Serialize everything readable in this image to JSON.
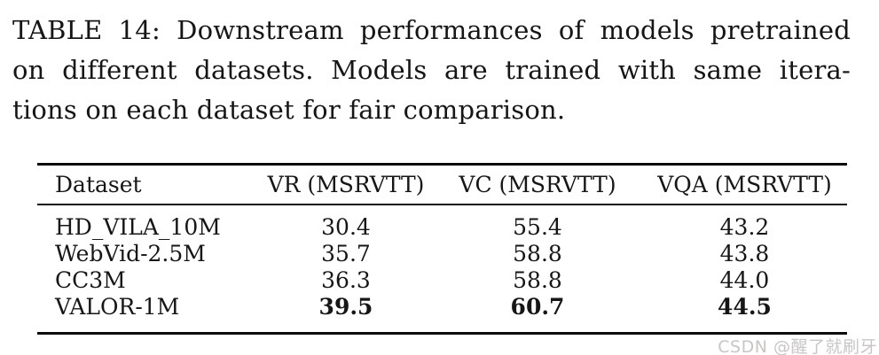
{
  "caption": {
    "lines": [
      "TABLE 14: Downstream performances of models pretrained",
      "on different datasets. Models are trained with same itera-",
      "tions on each dataset for fair comparison."
    ]
  },
  "table": {
    "columns": [
      "Dataset",
      "VR (MSRVTT)",
      "VC (MSRVTT)",
      "VQA (MSRVTT)"
    ],
    "rows": [
      {
        "dataset": "HD_VILA_10M",
        "vr": "30.4",
        "vc": "55.4",
        "vqa": "43.2"
      },
      {
        "dataset": "WebVid-2.5M",
        "vr": "35.7",
        "vc": "58.8",
        "vqa": "43.8"
      },
      {
        "dataset": "CC3M",
        "vr": "36.3",
        "vc": "58.8",
        "vqa": "44.0"
      },
      {
        "dataset": "VALOR-1M",
        "vr": "39.5",
        "vc": "60.7",
        "vqa": "44.5"
      }
    ],
    "best_row": "VALOR-1M"
  },
  "watermark": {
    "text": "CSDN @醒了就刷牙"
  },
  "colors": {
    "background": "#ffffff",
    "text": "#161616",
    "rule": "#0c0c0c",
    "watermark": "#c9c5c5"
  }
}
